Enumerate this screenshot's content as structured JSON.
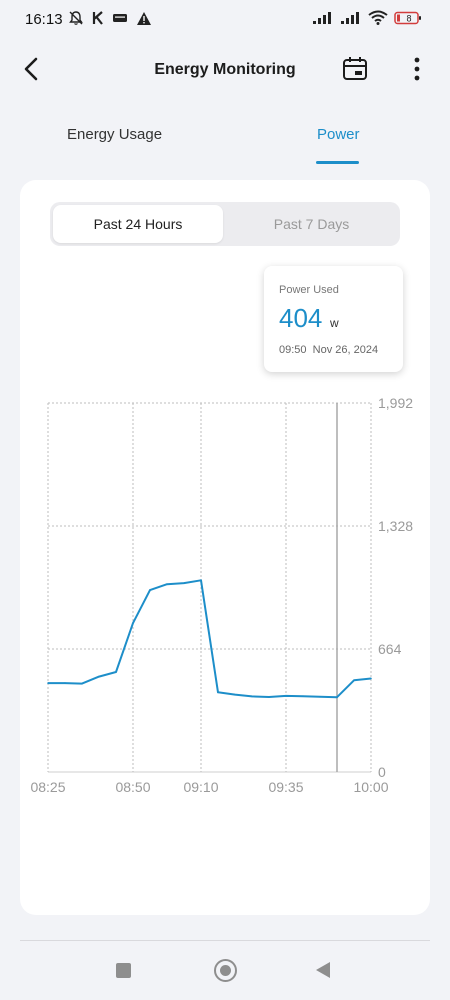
{
  "status_bar": {
    "time": "16:13",
    "battery": "8",
    "icons": [
      "bell-off-icon",
      "k-icon",
      "notification-badge-icon",
      "warning-icon",
      "signal-icon",
      "signal-icon",
      "wifi-icon",
      "battery-icon"
    ]
  },
  "header": {
    "title": "Energy Monitoring",
    "back_icon": "chevron-left-icon",
    "calendar_icon": "calendar-icon",
    "more_icon": "more-vertical-icon"
  },
  "tabs": [
    {
      "label": "Energy Usage",
      "active": false
    },
    {
      "label": "Power",
      "active": true
    }
  ],
  "range_selector": {
    "options": [
      "Past 24 Hours",
      "Past 7 Days"
    ],
    "selected": "Past 24 Hours"
  },
  "tooltip": {
    "label": "Power Used",
    "value": "404",
    "unit": "w",
    "time": "09:50",
    "date": "Nov 26, 2024"
  },
  "colors": {
    "accent": "#1d8ec9",
    "line": "#1d8ec9",
    "grid": "#bdbdbd",
    "tick": "#9a9a9a"
  },
  "chart_data": {
    "type": "line",
    "x_ticks": [
      "08:25",
      "08:50",
      "09:10",
      "09:35",
      "10:00"
    ],
    "y_ticks": [
      "0",
      "664",
      "1,328",
      "1,992"
    ],
    "ylim": [
      0,
      1992
    ],
    "xlim": [
      "08:25",
      "10:00"
    ],
    "grid": true,
    "cursor_x": "09:50",
    "series": [
      {
        "x": [
          "08:25",
          "08:30",
          "08:35",
          "08:40",
          "08:45",
          "08:50",
          "08:55",
          "09:00",
          "09:05",
          "09:10",
          "09:15",
          "09:20",
          "09:25",
          "09:30",
          "09:35",
          "09:40",
          "09:45",
          "09:50",
          "09:55",
          "10:00"
        ],
        "values": [
          480,
          480,
          477,
          515,
          540,
          804,
          982,
          1014,
          1020,
          1035,
          430,
          418,
          408,
          405,
          411,
          409,
          406,
          404,
          495,
          505
        ]
      }
    ]
  },
  "nav_bar": {
    "icons": [
      "recent-apps-icon",
      "home-icon",
      "back-triangle-icon"
    ]
  }
}
